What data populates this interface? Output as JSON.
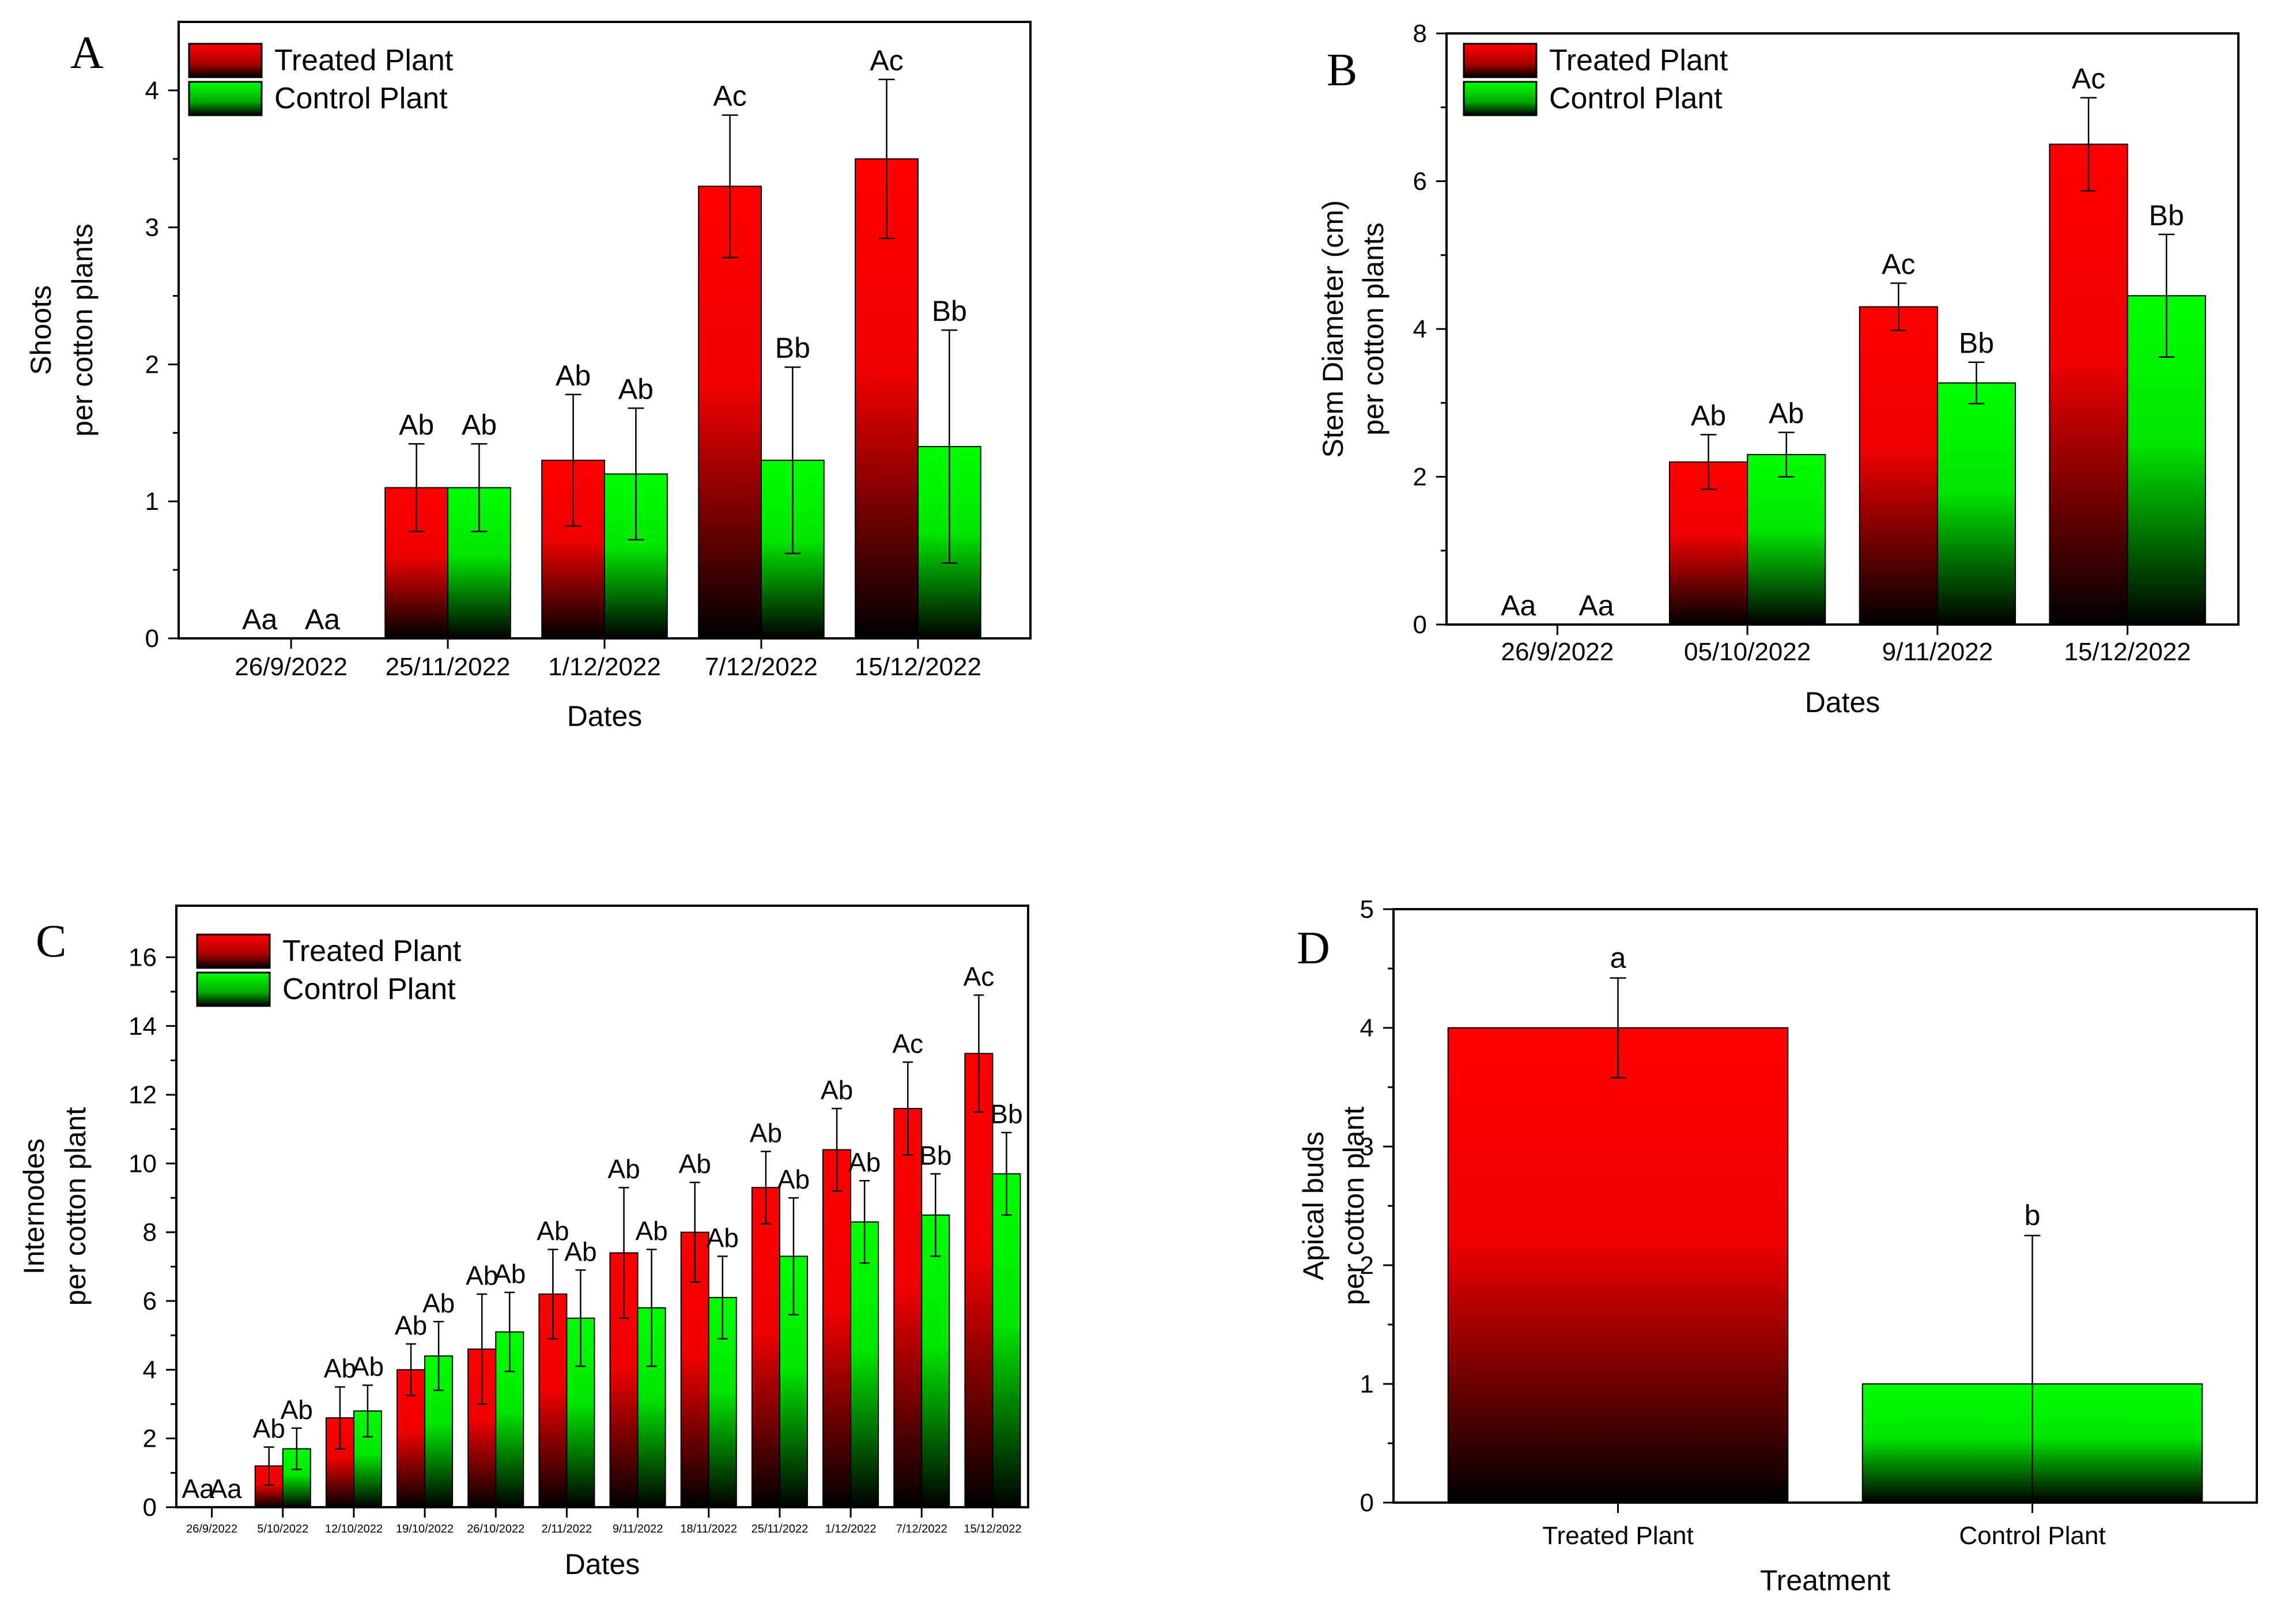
{
  "colors": {
    "treated_top": "#ff0000",
    "treated_bottom": "#000000",
    "control_top": "#00ff00",
    "control_bottom": "#000000",
    "axis": "#000000"
  },
  "chart_data": [
    {
      "panel": "A",
      "type": "bar",
      "xlabel": "Dates",
      "ylabel": [
        "Shoots",
        "per cotton plants"
      ],
      "ylim": [
        0,
        4.5
      ],
      "yticks": [
        0,
        1,
        2,
        3,
        4
      ],
      "categories": [
        "26/9/2022",
        "25/11/2022",
        "1/12/2022",
        "7/12/2022",
        "15/12/2022"
      ],
      "series": [
        {
          "name": "Treated Plant",
          "values": [
            0,
            1.1,
            1.3,
            3.3,
            3.5
          ],
          "errors": [
            0,
            0.32,
            0.48,
            0.52,
            0.58
          ],
          "labels": [
            "Aa",
            "Ab",
            "Ab",
            "Ac",
            "Ac"
          ]
        },
        {
          "name": "Control Plant",
          "values": [
            0,
            1.1,
            1.2,
            1.3,
            1.4
          ],
          "errors": [
            0,
            0.32,
            0.48,
            0.68,
            0.85
          ],
          "labels": [
            "Aa",
            "Ab",
            "Ab",
            "Bb",
            "Bb"
          ]
        }
      ],
      "legend": "top-left"
    },
    {
      "panel": "B",
      "type": "bar",
      "xlabel": "Dates",
      "ylabel": [
        "Stem Diameter (cm)",
        "per cotton plants"
      ],
      "ylim": [
        0,
        8
      ],
      "yticks": [
        0,
        2,
        4,
        6,
        8
      ],
      "categories": [
        "26/9/2022",
        "05/10/2022",
        "9/11/2022",
        "15/12/2022"
      ],
      "series": [
        {
          "name": "Treated Plant",
          "values": [
            0,
            2.2,
            4.3,
            6.5
          ],
          "errors": [
            0,
            0.37,
            0.32,
            0.63
          ],
          "labels": [
            "Aa",
            "Ab",
            "Ac",
            "Ac"
          ]
        },
        {
          "name": "Control Plant",
          "values": [
            0,
            2.3,
            3.27,
            4.45
          ],
          "errors": [
            0,
            0.3,
            0.28,
            0.83
          ],
          "labels": [
            "Aa",
            "Ab",
            "Bb",
            "Bb"
          ]
        }
      ],
      "legend": "top-left"
    },
    {
      "panel": "C",
      "type": "bar",
      "xlabel": "Dates",
      "ylabel": [
        "Internodes",
        "per cotton plant"
      ],
      "ylim": [
        0,
        17.5
      ],
      "yticks": [
        0,
        2,
        4,
        6,
        8,
        10,
        12,
        14,
        16
      ],
      "categories": [
        "26/9/2022",
        "5/10/2022",
        "12/10/2022",
        "19/10/2022",
        "26/10/2022",
        "2/11/2022",
        "9/11/2022",
        "18/11/2022",
        "25/11/2022",
        "1/12/2022",
        "7/12/2022",
        "15/12/2022"
      ],
      "series": [
        {
          "name": "Treated Plant",
          "values": [
            0,
            1.2,
            2.6,
            4.0,
            4.6,
            6.2,
            7.4,
            8.0,
            9.3,
            10.4,
            11.6,
            13.2
          ],
          "errors": [
            0,
            0.55,
            0.9,
            0.75,
            1.6,
            1.3,
            1.9,
            1.45,
            1.05,
            1.2,
            1.35,
            1.7
          ],
          "labels": [
            "Aa",
            "Ab",
            "Ab",
            "Ab",
            "Ab",
            "Ab",
            "Ab",
            "Ab",
            "Ab",
            "Ab",
            "Ac",
            "Ac"
          ]
        },
        {
          "name": "Control Plant",
          "values": [
            0,
            1.7,
            2.8,
            4.4,
            5.1,
            5.5,
            5.8,
            6.1,
            7.3,
            8.3,
            8.5,
            9.7
          ],
          "errors": [
            0,
            0.6,
            0.75,
            1.0,
            1.15,
            1.4,
            1.7,
            1.2,
            1.7,
            1.2,
            1.2,
            1.2
          ],
          "labels": [
            "Aa",
            "Ab",
            "Ab",
            "Ab",
            "Ab",
            "Ab",
            "Ab",
            "Ab",
            "Ab",
            "Ab",
            "Bb",
            "Bb"
          ]
        }
      ],
      "legend": "top-left"
    },
    {
      "panel": "D",
      "type": "bar",
      "xlabel": "Treatment",
      "ylabel": [
        "Apical buds",
        "per cotton plant"
      ],
      "ylim": [
        0,
        5
      ],
      "yticks": [
        0,
        1,
        2,
        3,
        4,
        5
      ],
      "categories": [
        "Treated Plant",
        "Control Plant"
      ],
      "values": [
        4.0,
        1.0
      ],
      "errors": [
        0.42,
        1.25
      ],
      "labels": [
        "a",
        "b"
      ]
    }
  ]
}
